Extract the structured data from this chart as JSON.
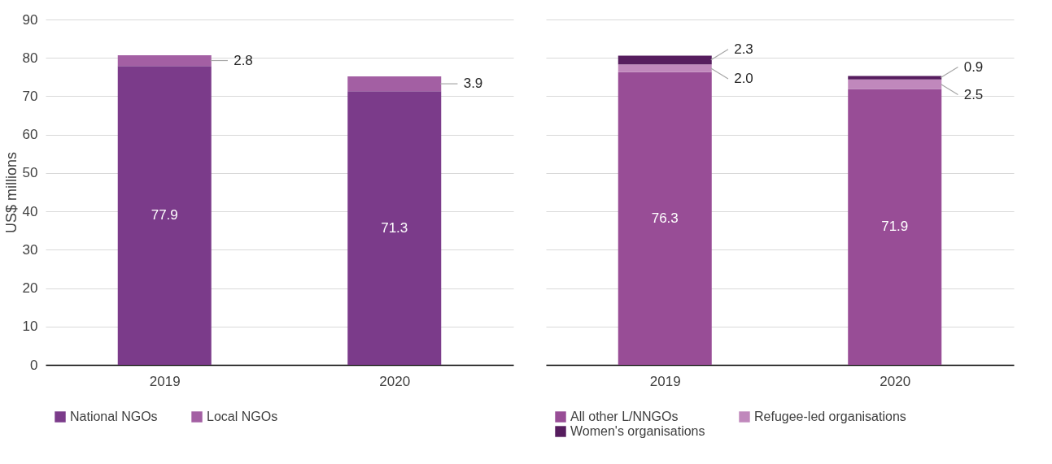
{
  "chart_data": [
    {
      "type": "bar",
      "stacked": true,
      "ylabel": "US$ millions",
      "categories": [
        "2019",
        "2020"
      ],
      "ylim": [
        0,
        90
      ],
      "yticks": [
        0,
        10,
        20,
        30,
        40,
        50,
        60,
        70,
        80,
        90
      ],
      "grid": "y",
      "legend": "bottom",
      "series": [
        {
          "name": "National NGOs",
          "color": "#7b3b8a",
          "values": [
            77.9,
            71.3
          ],
          "value_labels": [
            "77.9",
            "71.3"
          ]
        },
        {
          "name": "Local NGOs",
          "color": "#a35fa3",
          "values": [
            2.8,
            3.9
          ],
          "value_labels": [
            "2.8",
            "3.9"
          ]
        }
      ]
    },
    {
      "type": "bar",
      "stacked": true,
      "categories": [
        "2019",
        "2020"
      ],
      "ylim": [
        0,
        90
      ],
      "yticks": [
        0,
        10,
        20,
        30,
        40,
        50,
        60,
        70,
        80,
        90
      ],
      "grid": "y",
      "legend": "bottom",
      "tick_labels": "x",
      "series": [
        {
          "name": "All other L/NNGOs",
          "color": "#984d96",
          "values": [
            76.3,
            71.9
          ],
          "value_labels": [
            "76.3",
            "71.9"
          ]
        },
        {
          "name": "Refugee-led organisations",
          "color": "#c088bc",
          "values": [
            2.0,
            2.5
          ],
          "value_labels": [
            "2.0",
            "2.5"
          ]
        },
        {
          "name": "Women's organisations",
          "color": "#561d5e",
          "values": [
            2.3,
            0.9
          ],
          "value_labels": [
            "2.3",
            "0.9"
          ]
        }
      ]
    }
  ]
}
